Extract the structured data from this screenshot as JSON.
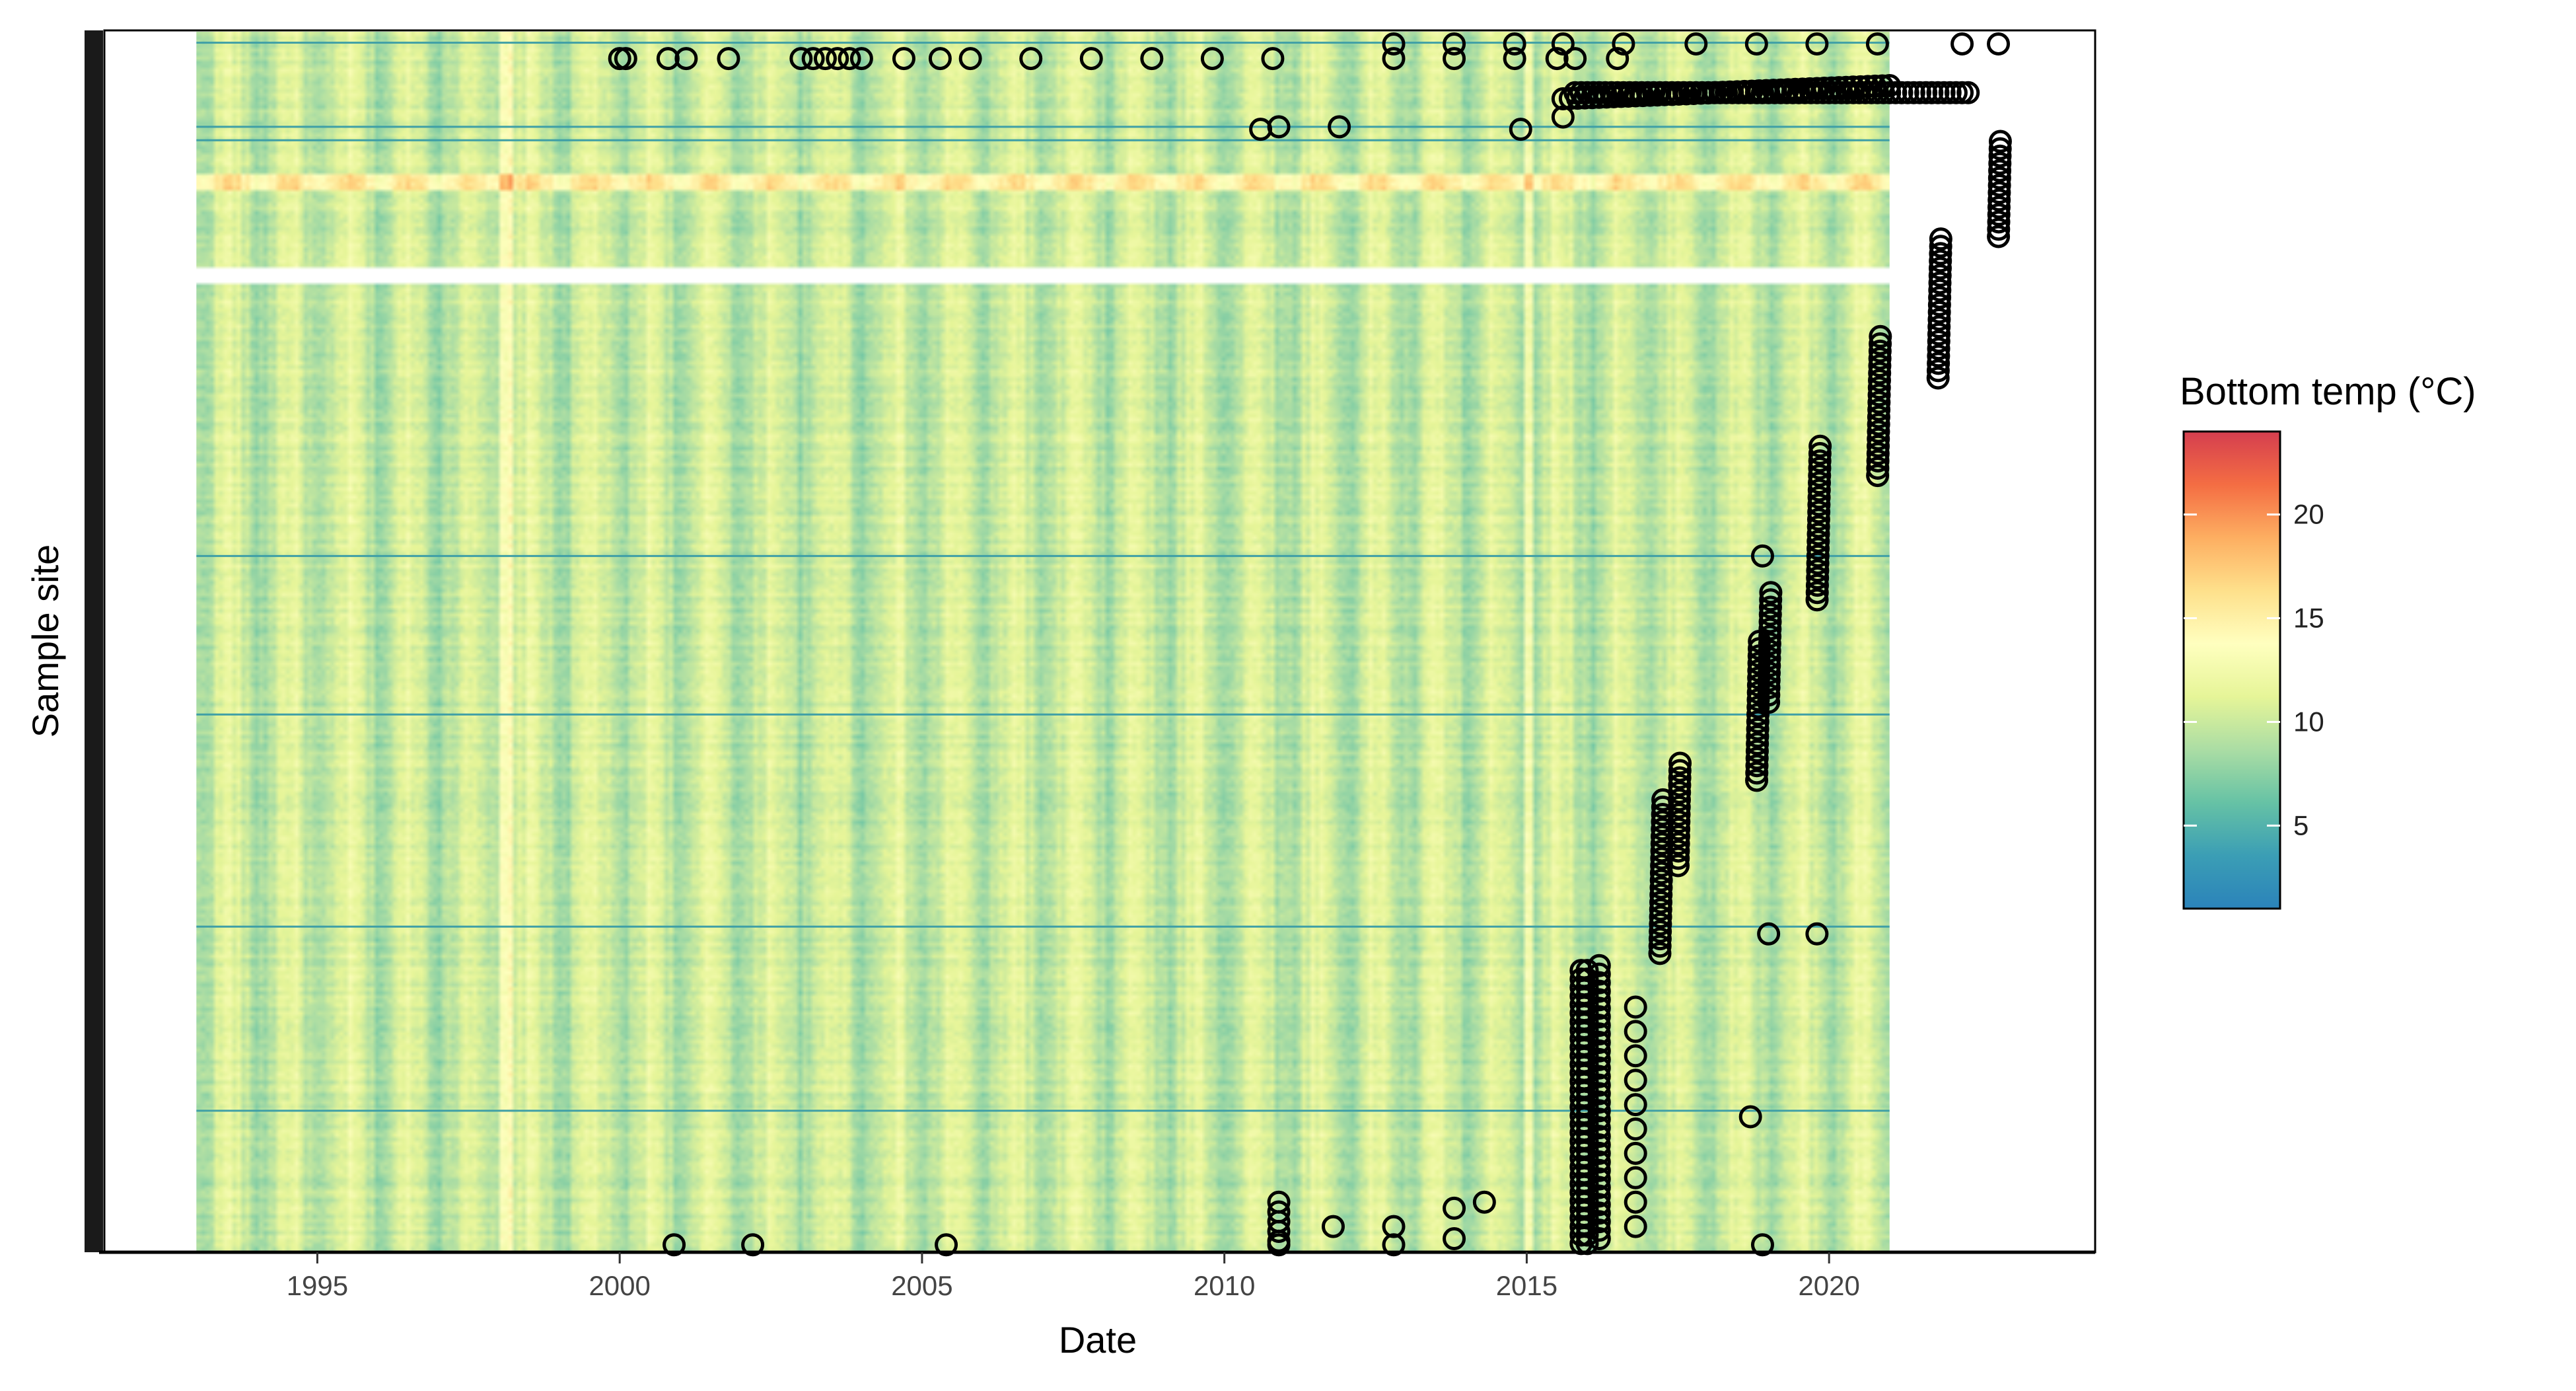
{
  "chart_data": {
    "type": "heatmap",
    "title": "",
    "xlabel": "Date",
    "ylabel": "Sample site",
    "xlim": [
      1991.5,
      2024.4
    ],
    "x_ticks": [
      "1995",
      "2000",
      "2005",
      "2010",
      "2015",
      "2020"
    ],
    "x_tick_values": [
      1995,
      2000,
      2005,
      2010,
      2015,
      2020
    ],
    "y_ticks": [],
    "grid": false,
    "heatmap": {
      "x_range": [
        1993.0,
        2021.0
      ],
      "description_axis": "rows = sample sites, columns = time",
      "typical_value": 10,
      "warm_columns_year": [
        1998.0,
        1998.1,
        2015.0
      ],
      "cool_rows_fraction": [
        0.009,
        0.078,
        0.089,
        0.43,
        0.56,
        0.734,
        0.885
      ]
    },
    "legend": {
      "title": "Bottom temp (°C)",
      "position": "right",
      "ticks": [
        "5",
        "10",
        "15",
        "20"
      ],
      "tick_values": [
        5,
        10,
        15,
        20
      ],
      "range": [
        1,
        24
      ],
      "palette": [
        "#2b83ba",
        "#3b9eb5",
        "#66c2a5",
        "#abdda4",
        "#e6f598",
        "#ffffbf",
        "#fee08b",
        "#fdae61",
        "#f46d43",
        "#d53e4f"
      ]
    },
    "points_series": {
      "name": "",
      "marker": "open circle",
      "color": "#000000"
    }
  }
}
